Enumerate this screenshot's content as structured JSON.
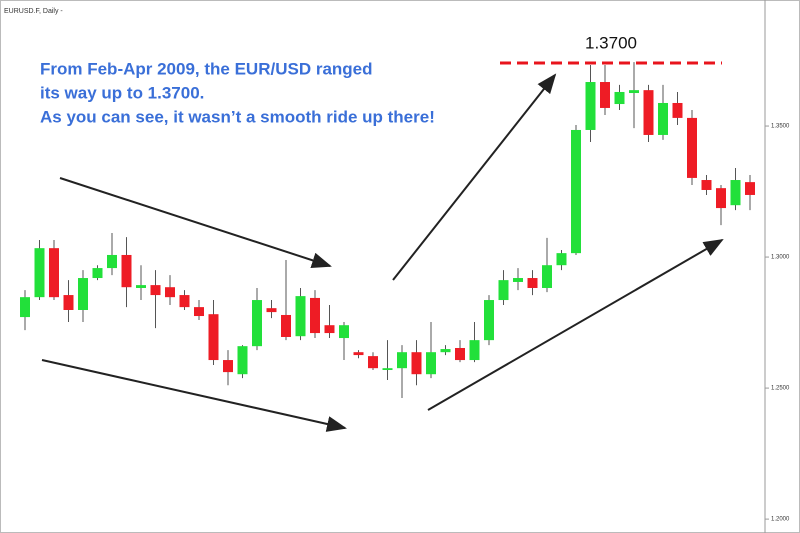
{
  "chart_data": {
    "type": "candlestick",
    "title": "EURUSD.F, Daily -",
    "annotation": [
      "From Feb-Apr 2009, the EUR/USD ranged",
      "its way up to 1.3700.",
      "As you can see, it wasn’t a smooth ride up there!"
    ],
    "level_label": "1.3700",
    "up_color": "#22e03a",
    "down_color": "#ee1c25",
    "ylim": [
      1.1947,
      1.3981
    ],
    "yticks": [
      {
        "value": 1.35,
        "label": "1.3500"
      },
      {
        "value": 1.3,
        "label": "1.3000"
      },
      {
        "value": 1.25,
        "label": "1.2500"
      },
      {
        "value": 1.2,
        "label": "1.2000"
      }
    ],
    "open": [
      1.2771,
      1.2847,
      1.3034,
      1.2855,
      1.2798,
      1.292,
      1.2958,
      1.3008,
      1.2882,
      1.2893,
      1.2885,
      1.2855,
      1.2809,
      1.2782,
      1.2607,
      1.2553,
      1.266,
      1.2805,
      1.2779,
      1.2698,
      1.2844,
      1.274,
      1.2691,
      1.2637,
      1.2622,
      1.2569,
      1.2576,
      1.2637,
      1.2553,
      1.2637,
      1.2653,
      1.2607,
      1.2683,
      1.2836,
      1.2905,
      1.292,
      1.2882,
      1.2969,
      1.3015,
      1.3485,
      1.3668,
      1.3584,
      1.3626,
      1.3637,
      1.3466,
      1.3588,
      1.3531,
      1.3294,
      1.3263,
      1.3198,
      1.3286
    ],
    "high": [
      1.2874,
      1.3065,
      1.3065,
      1.2912,
      1.295,
      1.2969,
      1.3092,
      1.3076,
      1.2969,
      1.295,
      1.2931,
      1.2874,
      1.2836,
      1.2836,
      1.2645,
      1.2664,
      1.2882,
      1.2836,
      1.2989,
      1.2882,
      1.2874,
      1.2817,
      1.2752,
      1.2645,
      1.2637,
      1.2683,
      1.2664,
      1.2683,
      1.2752,
      1.2664,
      1.2683,
      1.2752,
      1.2855,
      1.295,
      1.2958,
      1.295,
      1.3073,
      1.3027,
      1.3504,
      1.3733,
      1.3733,
      1.3657,
      1.3744,
      1.3657,
      1.3657,
      1.363,
      1.3561,
      1.3313,
      1.3275,
      1.334,
      1.3313
    ],
    "low": [
      1.2721,
      1.2836,
      1.2836,
      1.2752,
      1.2752,
      1.2912,
      1.2931,
      1.2809,
      1.2836,
      1.2729,
      1.2817,
      1.2798,
      1.276,
      1.2588,
      1.2511,
      1.2538,
      1.2645,
      1.2767,
      1.2683,
      1.2683,
      1.2691,
      1.2691,
      1.2607,
      1.2614,
      1.2569,
      1.2531,
      1.2462,
      1.2511,
      1.2538,
      1.2626,
      1.2599,
      1.2599,
      1.2664,
      1.2817,
      1.2874,
      1.2855,
      1.2866,
      1.295,
      1.3008,
      1.3439,
      1.3542,
      1.3561,
      1.3492,
      1.3439,
      1.3447,
      1.3504,
      1.3275,
      1.3237,
      1.3122,
      1.3179,
      1.3179
    ],
    "close": [
      1.2847,
      1.3034,
      1.2847,
      1.2798,
      1.292,
      1.2958,
      1.3008,
      1.2885,
      1.2893,
      1.2855,
      1.2847,
      1.2809,
      1.2775,
      1.2607,
      1.2561,
      1.266,
      1.2836,
      1.279,
      1.2695,
      1.2851,
      1.271,
      1.271,
      1.274,
      1.2626,
      1.2576,
      1.2576,
      1.2637,
      1.2553,
      1.2637,
      1.2649,
      1.2607,
      1.2683,
      1.2836,
      1.2912,
      1.292,
      1.2882,
      1.2969,
      1.3015,
      1.3485,
      1.3668,
      1.3569,
      1.363,
      1.3637,
      1.3466,
      1.3588,
      1.3531,
      1.3302,
      1.3256,
      1.3187,
      1.3294,
      1.3237
    ]
  }
}
